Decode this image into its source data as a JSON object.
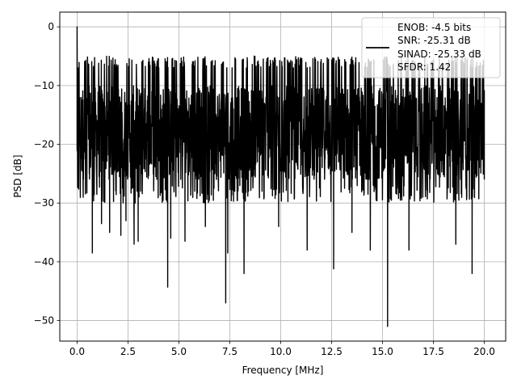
{
  "chart_data": {
    "type": "line",
    "title": "",
    "xlabel": "Frequency [MHz]",
    "ylabel": "PSD [dB]",
    "xlim": [
      -0.85,
      21.05
    ],
    "ylim": [
      -53.5,
      2.5
    ],
    "xticks": [
      0.0,
      2.5,
      5.0,
      7.5,
      10.0,
      12.5,
      15.0,
      17.5,
      20.0
    ],
    "xtick_labels": [
      "0.0",
      "2.5",
      "5.0",
      "7.5",
      "10.0",
      "12.5",
      "15.0",
      "17.5",
      "20.0"
    ],
    "yticks": [
      0,
      -10,
      -20,
      -30,
      -40,
      -50
    ],
    "ytick_labels": [
      "0",
      "−10",
      "−20",
      "−30",
      "−40",
      "−50"
    ],
    "grid": true,
    "legend_position": "top-right",
    "series_color": "#000000",
    "series": [
      {
        "style": "noise spectrum (dense)",
        "x_range": [
          0.0,
          20.0
        ],
        "baseline_band_db": [
          -26,
          -10
        ],
        "envelope_db": [
          -30,
          -5
        ],
        "x": [
          0.0,
          0.02,
          0.05,
          0.1,
          0.3,
          0.6,
          0.75,
          1.2,
          1.6,
          2.15,
          2.4,
          2.8,
          2.85,
          3.0,
          4.45,
          4.6,
          5.3,
          6.3,
          7.3,
          7.4,
          8.2,
          8.7,
          9.9,
          11.3,
          12.6,
          13.5,
          14.4,
          15.25,
          16.3,
          18.6,
          19.4,
          20.0
        ],
        "y": [
          0.0,
          -18.0,
          -7.0,
          -10.0,
          -29.0,
          -25.0,
          -38.5,
          -33.5,
          -35.0,
          -35.5,
          -33.0,
          -37.0,
          -30.0,
          -36.5,
          -44.3,
          -36.0,
          -36.5,
          -34.0,
          -47.0,
          -38.5,
          -42.0,
          -5.0,
          -34.0,
          -38.0,
          -41.2,
          -35.0,
          -38.0,
          -51.0,
          -38.0,
          -37.0,
          -42.0,
          -26.0
        ]
      }
    ],
    "legend": {
      "entries": [
        "ENOB: -4.5 bits",
        "SNR: -25.31 dB",
        "SINAD: -25.33 dB",
        "SFDR: 1.42"
      ]
    }
  }
}
